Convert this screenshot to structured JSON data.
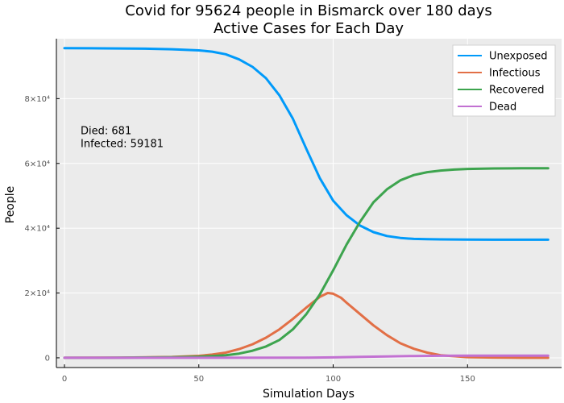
{
  "chart_data": {
    "type": "line",
    "title": "Covid for 95624 people in Bismarck over 180 days",
    "subtitle": "Active Cases for Each Day",
    "xlabel": "Simulation Days",
    "ylabel": "People",
    "xlim": [
      -3,
      185
    ],
    "ylim": [
      -3000,
      98500
    ],
    "grid": true,
    "legend_position": "top-right",
    "x_ticks": [
      {
        "value": 0,
        "label": "0"
      },
      {
        "value": 50,
        "label": "50"
      },
      {
        "value": 100,
        "label": "100"
      },
      {
        "value": 150,
        "label": "150"
      }
    ],
    "y_ticks": [
      {
        "value": 0,
        "label": "0"
      },
      {
        "value": 20000,
        "label": "2×10⁴"
      },
      {
        "value": 40000,
        "label": "4×10⁴"
      },
      {
        "value": 60000,
        "label": "6×10⁴"
      },
      {
        "value": 80000,
        "label": "8×10⁴"
      }
    ],
    "annotations": [
      {
        "text": "Died: 681",
        "x": 6,
        "y": 69000
      },
      {
        "text": "Infected: 59181",
        "x": 6,
        "y": 65000
      }
    ],
    "series": [
      {
        "name": "Unexposed",
        "color": "#009AFA",
        "x": [
          0,
          10,
          20,
          30,
          40,
          50,
          55,
          60,
          65,
          70,
          75,
          80,
          85,
          90,
          95,
          100,
          105,
          110,
          115,
          120,
          125,
          130,
          135,
          140,
          150,
          160,
          170,
          180
        ],
        "y": [
          95600,
          95550,
          95500,
          95420,
          95250,
          94900,
          94500,
          93700,
          92100,
          89800,
          86300,
          81000,
          73800,
          64500,
          55500,
          48500,
          44000,
          40800,
          38800,
          37600,
          37000,
          36700,
          36600,
          36550,
          36500,
          36450,
          36450,
          36450
        ]
      },
      {
        "name": "Infectious",
        "color": "#E26F46",
        "x": [
          0,
          20,
          40,
          50,
          55,
          60,
          65,
          70,
          75,
          80,
          85,
          90,
          95,
          98,
          100,
          103,
          105,
          110,
          115,
          120,
          125,
          130,
          135,
          140,
          150,
          160,
          170,
          180
        ],
        "y": [
          0,
          50,
          250,
          600,
          1000,
          1600,
          2700,
          4200,
          6200,
          8800,
          12000,
          15500,
          18800,
          20000,
          19800,
          18500,
          17000,
          13500,
          10000,
          7000,
          4500,
          2800,
          1600,
          800,
          200,
          80,
          20,
          0
        ]
      },
      {
        "name": "Recovered",
        "color": "#3DA44E",
        "x": [
          0,
          20,
          40,
          50,
          55,
          60,
          65,
          70,
          75,
          80,
          85,
          90,
          95,
          100,
          105,
          110,
          115,
          120,
          125,
          130,
          135,
          140,
          145,
          150,
          160,
          170,
          180
        ],
        "y": [
          0,
          30,
          150,
          350,
          550,
          800,
          1300,
          2200,
          3500,
          5500,
          8800,
          13500,
          19500,
          27000,
          35000,
          42000,
          48000,
          52000,
          54800,
          56400,
          57300,
          57800,
          58100,
          58300,
          58450,
          58500,
          58500
        ]
      },
      {
        "name": "Dead",
        "color": "#C271D2",
        "x": [
          0,
          50,
          90,
          100,
          110,
          120,
          130,
          140,
          150,
          160,
          180
        ],
        "y": [
          0,
          10,
          60,
          140,
          280,
          430,
          560,
          640,
          670,
          680,
          681
        ]
      }
    ]
  }
}
